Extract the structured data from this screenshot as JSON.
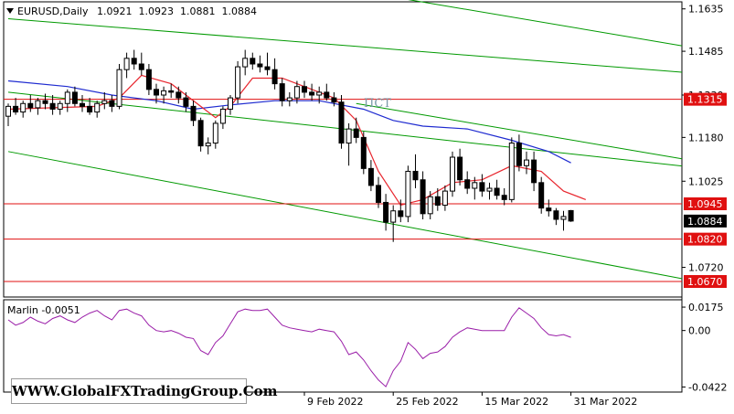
{
  "info": {
    "symbol_text": "EURUSD,Daily",
    "ohlc_text": "1.0921  1.0923  1.0881  1.0884"
  },
  "indicator": {
    "label": "Marlin -0.0051"
  },
  "watermark": "WWW.GlobalFXTradingGroup.Com",
  "tag_text": "ПСТ",
  "colors": {
    "bull": "#000000",
    "bear": "#000000",
    "channel": "#009900",
    "fast_ma": "#e8262e",
    "slow_ma": "#1f2bd0",
    "level": "#e01010",
    "oscillator": "#9a1ea8"
  },
  "chart_data": [
    {
      "type": "candlestick",
      "title": "EURUSD,Daily",
      "ylim": [
        1.0615,
        1.166
      ],
      "yticks": [
        "1.1635",
        "1.1485",
        "1.1330",
        "1.1180",
        "1.1025",
        "1.0720"
      ],
      "xticks": [
        {
          "label": "9 Feb 2022",
          "index": 40
        },
        {
          "label": "25 Feb 2022",
          "index": 52
        },
        {
          "label": "15 Mar 2022",
          "index": 64
        },
        {
          "label": "31 Mar 2022",
          "index": 76
        }
      ],
      "current_price": "1.0884",
      "levels": [
        {
          "label": "1.1315",
          "value": 1.1315
        },
        {
          "label": "1.0945",
          "value": 1.0945
        },
        {
          "label": "1.0820",
          "value": 1.082
        },
        {
          "label": "1.0670",
          "value": 1.067
        }
      ],
      "channel_lines": [
        {
          "from": [
            0,
            1.16
          ],
          "to": [
            101,
            1.139
          ]
        },
        {
          "from": [
            40,
            1.173
          ],
          "to": [
            101,
            1.146
          ]
        },
        {
          "from": [
            0,
            1.134
          ],
          "to": [
            101,
            1.105
          ]
        },
        {
          "from": [
            0,
            1.113
          ],
          "to": [
            91,
            1.068
          ]
        },
        {
          "from": [
            47,
            1.13
          ],
          "to": [
            101,
            1.106
          ]
        }
      ],
      "candles": [
        [
          1.1255,
          1.13,
          1.122,
          1.129
        ],
        [
          1.129,
          1.132,
          1.126,
          1.127
        ],
        [
          1.127,
          1.131,
          1.125,
          1.13
        ],
        [
          1.13,
          1.133,
          1.127,
          1.1285
        ],
        [
          1.1285,
          1.132,
          1.126,
          1.131
        ],
        [
          1.131,
          1.1335,
          1.128,
          1.13
        ],
        [
          1.13,
          1.133,
          1.126,
          1.128
        ],
        [
          1.128,
          1.131,
          1.126,
          1.13
        ],
        [
          1.13,
          1.135,
          1.127,
          1.134
        ],
        [
          1.134,
          1.136,
          1.129,
          1.13
        ],
        [
          1.13,
          1.133,
          1.127,
          1.129
        ],
        [
          1.129,
          1.132,
          1.126,
          1.127
        ],
        [
          1.127,
          1.131,
          1.125,
          1.13
        ],
        [
          1.13,
          1.134,
          1.128,
          1.131
        ],
        [
          1.131,
          1.133,
          1.127,
          1.129
        ],
        [
          1.129,
          1.144,
          1.128,
          1.142
        ],
        [
          1.142,
          1.148,
          1.139,
          1.146
        ],
        [
          1.146,
          1.149,
          1.142,
          1.144
        ],
        [
          1.144,
          1.148,
          1.14,
          1.142
        ],
        [
          1.142,
          1.144,
          1.133,
          1.135
        ],
        [
          1.135,
          1.137,
          1.13,
          1.133
        ],
        [
          1.133,
          1.136,
          1.13,
          1.1345
        ],
        [
          1.1345,
          1.137,
          1.132,
          1.134
        ],
        [
          1.134,
          1.136,
          1.13,
          1.132
        ],
        [
          1.132,
          1.134,
          1.127,
          1.129
        ],
        [
          1.129,
          1.131,
          1.122,
          1.124
        ],
        [
          1.124,
          1.125,
          1.113,
          1.115
        ],
        [
          1.115,
          1.118,
          1.112,
          1.116
        ],
        [
          1.116,
          1.124,
          1.114,
          1.123
        ],
        [
          1.123,
          1.129,
          1.121,
          1.128
        ],
        [
          1.128,
          1.133,
          1.126,
          1.132
        ],
        [
          1.132,
          1.145,
          1.13,
          1.143
        ],
        [
          1.143,
          1.149,
          1.14,
          1.146
        ],
        [
          1.146,
          1.148,
          1.142,
          1.144
        ],
        [
          1.144,
          1.147,
          1.141,
          1.143
        ],
        [
          1.143,
          1.148,
          1.14,
          1.142
        ],
        [
          1.142,
          1.146,
          1.135,
          1.137
        ],
        [
          1.137,
          1.139,
          1.129,
          1.131
        ],
        [
          1.131,
          1.134,
          1.129,
          1.132
        ],
        [
          1.132,
          1.138,
          1.13,
          1.136
        ],
        [
          1.136,
          1.138,
          1.132,
          1.134
        ],
        [
          1.134,
          1.137,
          1.131,
          1.133
        ],
        [
          1.133,
          1.136,
          1.13,
          1.134
        ],
        [
          1.134,
          1.137,
          1.131,
          1.132
        ],
        [
          1.132,
          1.134,
          1.129,
          1.1305
        ],
        [
          1.1305,
          1.133,
          1.114,
          1.116
        ],
        [
          1.116,
          1.123,
          1.108,
          1.121
        ],
        [
          1.121,
          1.125,
          1.116,
          1.118
        ],
        [
          1.118,
          1.12,
          1.105,
          1.107
        ],
        [
          1.107,
          1.11,
          1.099,
          1.101
        ],
        [
          1.101,
          1.104,
          1.093,
          1.095
        ],
        [
          1.095,
          1.098,
          1.085,
          1.088
        ],
        [
          1.088,
          1.094,
          1.081,
          1.092
        ],
        [
          1.092,
          1.096,
          1.088,
          1.09
        ],
        [
          1.09,
          1.108,
          1.088,
          1.106
        ],
        [
          1.106,
          1.112,
          1.1,
          1.103
        ],
        [
          1.103,
          1.106,
          1.089,
          1.091
        ],
        [
          1.091,
          1.099,
          1.089,
          1.097
        ],
        [
          1.097,
          1.1,
          1.092,
          1.094
        ],
        [
          1.094,
          1.101,
          1.092,
          1.099
        ],
        [
          1.099,
          1.113,
          1.097,
          1.111
        ],
        [
          1.111,
          1.114,
          1.101,
          1.103
        ],
        [
          1.103,
          1.106,
          1.098,
          1.1
        ],
        [
          1.1,
          1.104,
          1.096,
          1.102
        ],
        [
          1.102,
          1.105,
          1.097,
          1.099
        ],
        [
          1.099,
          1.102,
          1.096,
          1.1
        ],
        [
          1.1,
          1.103,
          1.096,
          1.0975
        ],
        [
          1.0975,
          1.1,
          1.094,
          1.096
        ],
        [
          1.096,
          1.118,
          1.095,
          1.116
        ],
        [
          1.116,
          1.119,
          1.106,
          1.108
        ],
        [
          1.108,
          1.113,
          1.105,
          1.11
        ],
        [
          1.11,
          1.113,
          1.099,
          1.102
        ],
        [
          1.102,
          1.104,
          1.091,
          1.093
        ],
        [
          1.093,
          1.096,
          1.09,
          1.092
        ],
        [
          1.092,
          1.093,
          1.087,
          1.089
        ],
        [
          1.089,
          1.092,
          1.085,
          1.09
        ],
        [
          1.0921,
          1.0923,
          1.0881,
          1.0884
        ]
      ],
      "fast_ma_anchors": [
        [
          0,
          1.128
        ],
        [
          6,
          1.1285
        ],
        [
          12,
          1.129
        ],
        [
          15,
          1.132
        ],
        [
          18,
          1.14
        ],
        [
          22,
          1.137
        ],
        [
          26,
          1.129
        ],
        [
          28,
          1.125
        ],
        [
          30,
          1.129
        ],
        [
          33,
          1.139
        ],
        [
          37,
          1.139
        ],
        [
          41,
          1.135
        ],
        [
          44,
          1.132
        ],
        [
          47,
          1.124
        ],
        [
          50,
          1.106
        ],
        [
          53,
          1.094
        ],
        [
          56,
          1.096
        ],
        [
          60,
          1.102
        ],
        [
          64,
          1.103
        ],
        [
          68,
          1.108
        ],
        [
          72,
          1.106
        ],
        [
          75,
          1.099
        ],
        [
          78,
          1.096
        ]
      ],
      "slow_ma_anchors": [
        [
          0,
          1.138
        ],
        [
          8,
          1.136
        ],
        [
          14,
          1.133
        ],
        [
          20,
          1.131
        ],
        [
          25,
          1.128
        ],
        [
          30,
          1.1295
        ],
        [
          36,
          1.131
        ],
        [
          42,
          1.131
        ],
        [
          48,
          1.128
        ],
        [
          52,
          1.124
        ],
        [
          56,
          1.122
        ],
        [
          62,
          1.121
        ],
        [
          68,
          1.117
        ],
        [
          73,
          1.113
        ],
        [
          76,
          1.109
        ]
      ]
    },
    {
      "type": "line",
      "title": "Marlin -0.0051",
      "ylim": [
        -0.046,
        0.023
      ],
      "yticks": [
        "0.0175",
        "0.00",
        "-0.0422"
      ],
      "series": [
        {
          "name": "Marlin",
          "values": [
            0.008,
            0.004,
            0.006,
            0.01,
            0.007,
            0.005,
            0.009,
            0.011,
            0.008,
            0.006,
            0.01,
            0.013,
            0.015,
            0.011,
            0.008,
            0.015,
            0.016,
            0.013,
            0.011,
            0.004,
            0.0,
            -0.001,
            0.0,
            -0.002,
            -0.005,
            -0.006,
            -0.015,
            -0.018,
            -0.009,
            -0.004,
            0.005,
            0.014,
            0.016,
            0.015,
            0.015,
            0.016,
            0.01,
            0.004,
            0.002,
            0.001,
            0.0,
            -0.001,
            0.001,
            0.0,
            -0.001,
            -0.008,
            -0.018,
            -0.016,
            -0.022,
            -0.03,
            -0.037,
            -0.042,
            -0.03,
            -0.023,
            -0.009,
            -0.014,
            -0.021,
            -0.017,
            -0.016,
            -0.012,
            -0.005,
            -0.001,
            0.002,
            0.001,
            0.0,
            0.0,
            0.0,
            0.0,
            0.01,
            0.017,
            0.013,
            0.009,
            0.002,
            -0.003,
            -0.004,
            -0.003,
            -0.0051
          ]
        }
      ]
    }
  ]
}
